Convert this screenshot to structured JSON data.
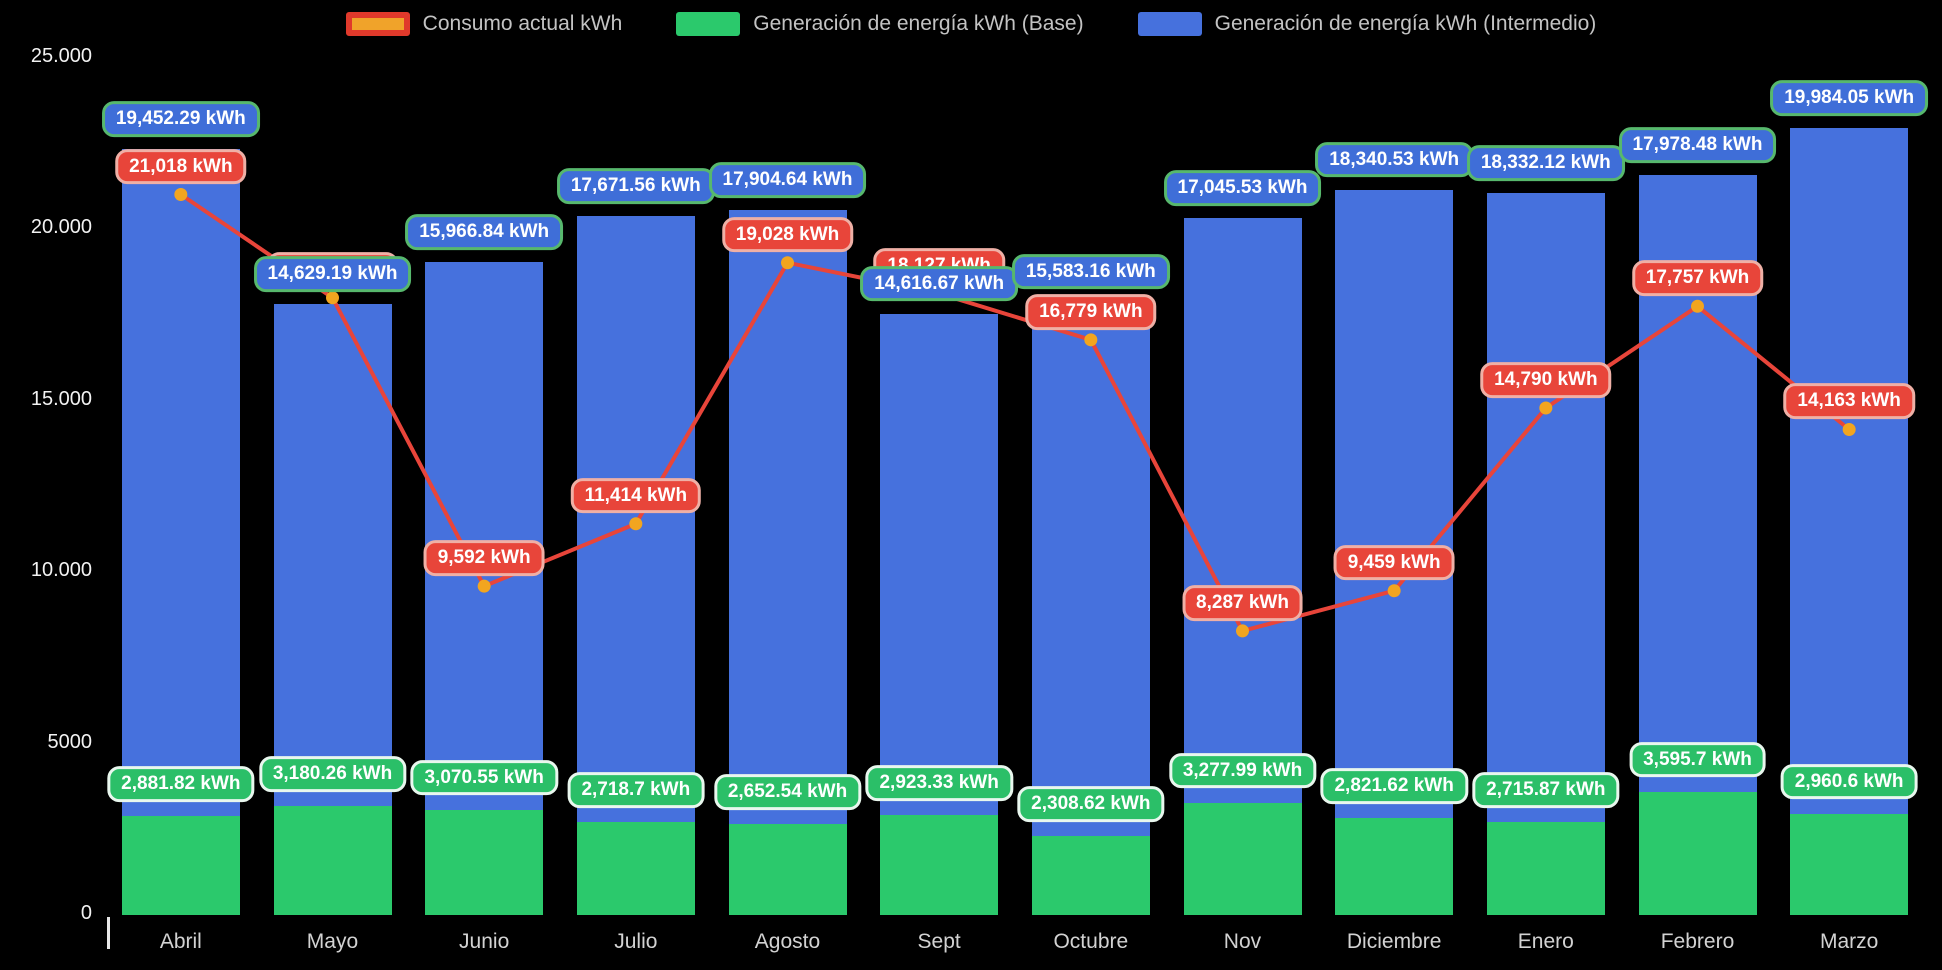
{
  "legend": [
    {
      "label": "Consumo actual kWh",
      "swatch_fill": "#f0a32a",
      "swatch_border": "#e0392b"
    },
    {
      "label": "Generación de energía kWh (Base)",
      "swatch_fill": "#2bc96c"
    },
    {
      "label": "Generación de energía kWh (Intermedio)",
      "swatch_fill": "#4671dd"
    }
  ],
  "chart_data": {
    "type": "bar",
    "stacked": true,
    "background": "#000000",
    "grid": false,
    "legend_position": "top",
    "categories": [
      "Abril",
      "Mayo",
      "Junio",
      "Julio",
      "Agosto",
      "Sept",
      "Octubre",
      "Nov",
      "Diciembre",
      "Enero",
      "Febrero",
      "Marzo"
    ],
    "series": [
      {
        "name": "Generación de energía kWh (Base)",
        "type": "bar",
        "color": "#2bc96c",
        "values": [
          2881.82,
          3180.26,
          3070.55,
          2718.7,
          2652.54,
          2923.33,
          2308.62,
          3277.99,
          2821.62,
          2715.87,
          3595.7,
          2960.6
        ]
      },
      {
        "name": "Generación de energía kWh (Intermedio)",
        "type": "bar",
        "color": "#4671dd",
        "values": [
          19452.29,
          14629.19,
          15966.84,
          17671.56,
          17904.64,
          14616.67,
          15583.16,
          17045.53,
          18340.53,
          18332.12,
          17978.48,
          19984.05
        ]
      },
      {
        "name": "Consumo actual kWh",
        "type": "line",
        "color": "#e8453a",
        "point_color": "#f2a51f",
        "values": [
          21018,
          18007,
          9592,
          11414,
          19028,
          18127,
          16779,
          8287,
          9459,
          14790,
          17757,
          14163
        ]
      }
    ],
    "data_labels": {
      "base": [
        "2,881.82 kWh",
        "3,180.26 kWh",
        "3,070.55 kWh",
        "2,718.7 kWh",
        "2,652.54 kWh",
        "2,923.33 kWh",
        "2,308.62 kWh",
        "3,277.99 kWh",
        "2,821.62 kWh",
        "2,715.87 kWh",
        "3,595.7 kWh",
        "2,960.6 kWh"
      ],
      "intermedio": [
        "19,452.29 kWh",
        "14,629.19 kWh",
        "15,966.84 kWh",
        "17,671.56 kWh",
        "17,904.64 kWh",
        "14,616.67 kWh",
        "15,583.16 kWh",
        "17,045.53 kWh",
        "18,340.53 kWh",
        "18,332.12 kWh",
        "17,978.48 kWh",
        "19,984.05 kWh"
      ],
      "consumo": [
        "21,018 kWh",
        "18,007 kWh",
        "9,592 kWh",
        "11,414 kWh",
        "19,028 kWh",
        "18,127 kWh",
        "16,779 kWh",
        "8,287 kWh",
        "9,459 kWh",
        "14,790 kWh",
        "17,757 kWh",
        "14,163 kWh"
      ]
    },
    "ylim": [
      0,
      25000
    ],
    "yticks": [
      {
        "value": 0,
        "label": "0"
      },
      {
        "value": 5000,
        "label": "5000"
      },
      {
        "value": 10000,
        "label": "10.000"
      },
      {
        "value": 15000,
        "label": "15.000"
      },
      {
        "value": 20000,
        "label": "20.000"
      },
      {
        "value": 25000,
        "label": "25.000"
      }
    ]
  }
}
